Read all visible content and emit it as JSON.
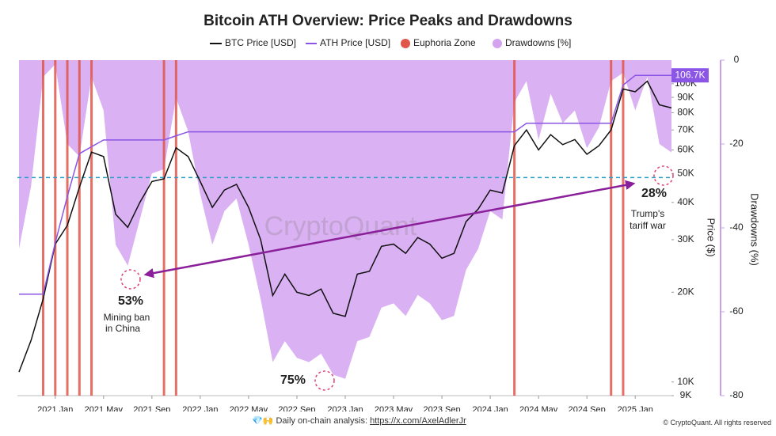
{
  "chart_data": {
    "type": "line",
    "title": "Bitcoin ATH Overview: Price Peaks and Drawdowns",
    "watermark": "CryptoQuant",
    "y_label": "Price ($)",
    "y2_label": "Drawdowns (%)",
    "log_y": true,
    "xlim": [
      "2020-10",
      "2025-04"
    ],
    "xticks": [
      {
        "value": "2021-01",
        "label": "2021 Jan"
      },
      {
        "value": "2021-05",
        "label": "2021 May"
      },
      {
        "value": "2021-09",
        "label": "2021 Sep"
      },
      {
        "value": "2022-01",
        "label": "2022 Jan"
      },
      {
        "value": "2022-05",
        "label": "2022 May"
      },
      {
        "value": "2022-09",
        "label": "2022 Sep"
      },
      {
        "value": "2023-01",
        "label": "2023 Jan"
      },
      {
        "value": "2023-05",
        "label": "2023 May"
      },
      {
        "value": "2023-09",
        "label": "2023 Sep"
      },
      {
        "value": "2024-01",
        "label": "2024 Jan"
      },
      {
        "value": "2024-05",
        "label": "2024 May"
      },
      {
        "value": "2024-09",
        "label": "2024 Sep"
      },
      {
        "value": "2025-01",
        "label": "2025 Jan"
      }
    ],
    "ylim": [
      9000,
      120000
    ],
    "yticks": [
      {
        "value": 9000,
        "label": "9K"
      },
      {
        "value": 10000,
        "label": "10K"
      },
      {
        "value": 20000,
        "label": "20K"
      },
      {
        "value": 30000,
        "label": "30K"
      },
      {
        "value": 40000,
        "label": "40K"
      },
      {
        "value": 50000,
        "label": "50K"
      },
      {
        "value": 60000,
        "label": "60K"
      },
      {
        "value": 70000,
        "label": "70K"
      },
      {
        "value": 80000,
        "label": "80K"
      },
      {
        "value": 90000,
        "label": "90K"
      },
      {
        "value": 100000,
        "label": "100K"
      }
    ],
    "y2lim": [
      -80,
      0
    ],
    "y2ticks": [
      -80,
      -60,
      -40,
      -20,
      0
    ],
    "x": [
      "2020-10",
      "2020-11",
      "2020-12",
      "2021-01",
      "2021-02",
      "2021-03",
      "2021-04",
      "2021-05",
      "2021-06",
      "2021-07",
      "2021-08",
      "2021-09",
      "2021-10",
      "2021-11",
      "2021-12",
      "2022-01",
      "2022-02",
      "2022-03",
      "2022-04",
      "2022-05",
      "2022-06",
      "2022-07",
      "2022-08",
      "2022-09",
      "2022-10",
      "2022-11",
      "2022-12",
      "2023-01",
      "2023-02",
      "2023-03",
      "2023-04",
      "2023-05",
      "2023-06",
      "2023-07",
      "2023-08",
      "2023-09",
      "2023-10",
      "2023-11",
      "2023-12",
      "2024-01",
      "2024-02",
      "2024-03",
      "2024-04",
      "2024-05",
      "2024-06",
      "2024-07",
      "2024-08",
      "2024-09",
      "2024-10",
      "2024-11",
      "2024-12",
      "2025-01",
      "2025-02",
      "2025-03",
      "2025-04"
    ],
    "series": [
      {
        "name": "BTC Price [USD]",
        "type": "line",
        "color": "#111111",
        "values": [
          10800,
          13800,
          19000,
          29000,
          33500,
          45000,
          59000,
          57000,
          36500,
          33000,
          40000,
          47000,
          48000,
          61000,
          57000,
          47000,
          38500,
          44000,
          46000,
          38500,
          30000,
          19500,
          23000,
          20000,
          19500,
          20500,
          17000,
          16600,
          23000,
          23500,
          28500,
          29000,
          27000,
          30500,
          29000,
          26000,
          27000,
          34500,
          38000,
          44000,
          43000,
          62000,
          70000,
          60000,
          67500,
          62500,
          65000,
          58000,
          62000,
          70000,
          96000,
          94000,
          102000,
          85000,
          83000
        ]
      },
      {
        "name": "ATH Price [USD]",
        "type": "line",
        "color": "#8b55e6",
        "values": [
          19700,
          19700,
          19700,
          29300,
          41900,
          58300,
          61500,
          64800,
          64800,
          64800,
          64800,
          64800,
          64800,
          66900,
          69000,
          69000,
          69000,
          69000,
          69000,
          69000,
          69000,
          69000,
          69000,
          69000,
          69000,
          69000,
          69000,
          69000,
          69000,
          69000,
          69000,
          69000,
          69000,
          69000,
          69000,
          69000,
          69000,
          69000,
          69000,
          69000,
          69000,
          69000,
          73700,
          73700,
          73700,
          73700,
          73700,
          73700,
          73700,
          73700,
          99000,
          106700,
          106700,
          106700,
          106700
        ],
        "value_labels": [
          null,
          null,
          null,
          null,
          null,
          null,
          null,
          null,
          null,
          null,
          null,
          null,
          null,
          null,
          null,
          null,
          null,
          null,
          null,
          null,
          null,
          null,
          null,
          null,
          null,
          null,
          null,
          null,
          null,
          null,
          null,
          null,
          null,
          null,
          null,
          null,
          null,
          null,
          null,
          null,
          null,
          null,
          null,
          null,
          null,
          null,
          null,
          null,
          null,
          null,
          null,
          null,
          null,
          null,
          "106.7K"
        ]
      },
      {
        "name": "Euphoria Zone",
        "type": "zones",
        "color": "#e0564a",
        "x": [
          "2020-12",
          "2021-01",
          "2021-02",
          "2021-03",
          "2021-04",
          "2021-10",
          "2021-11",
          "2024-03",
          "2024-11",
          "2024-12"
        ]
      },
      {
        "name": "Drawdowns [%]",
        "type": "area",
        "axis": "y2",
        "color": "#d3a3f0",
        "values": [
          -45,
          -30,
          -4,
          -1,
          -20,
          -23,
          -4,
          -12,
          -44,
          -49,
          -38,
          -27,
          -26,
          -9,
          -17,
          -32,
          -44,
          -36,
          -33,
          -44,
          -57,
          -72,
          -67,
          -71,
          -72,
          -70,
          -75,
          -76,
          -67,
          -66,
          -59,
          -58,
          -61,
          -56,
          -58,
          -62,
          -61,
          -50,
          -45,
          -36,
          -38,
          -10,
          -5,
          -19,
          -8,
          -15,
          -12,
          -21,
          -16,
          -5,
          -3,
          -12,
          -4,
          -20,
          -22
        ]
      }
    ],
    "reference_line": {
      "value": -28,
      "axis": "y2",
      "color": "#2a9fc9"
    },
    "annotations": [
      {
        "label": "53%",
        "note": [
          "Mining ban",
          "in China"
        ]
      },
      {
        "label": "75%"
      },
      {
        "label": "28%",
        "note": [
          "Trump's",
          "tariff war"
        ]
      }
    ]
  },
  "footer": {
    "text": "💎🙌 Daily on-chain analysis:",
    "link": "https://x.com/AxelAdlerJr",
    "copyright": "© CryptoQuant. All rights reserved"
  }
}
